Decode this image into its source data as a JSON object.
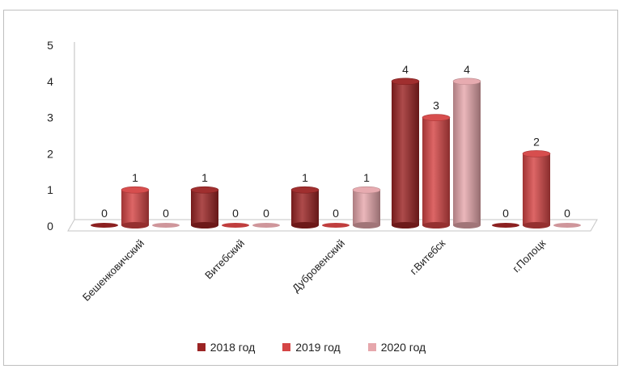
{
  "chart_data": {
    "type": "bar",
    "categories": [
      "Бешенковичский",
      "Витебский",
      "Дубровенский",
      "г.Витебск",
      "г.Полоцк"
    ],
    "series": [
      {
        "name": "2018 год",
        "values": [
          0,
          1,
          1,
          4,
          0
        ],
        "color": "#9b2424"
      },
      {
        "name": "2019 год",
        "values": [
          1,
          0,
          0,
          3,
          2
        ],
        "color": "#d54545"
      },
      {
        "name": "2020 год",
        "values": [
          0,
          0,
          1,
          4,
          0
        ],
        "color": "#e6a7ac"
      }
    ],
    "ylim": [
      0,
      5
    ],
    "yticks": [
      "0",
      "1",
      "2",
      "3",
      "4",
      "5"
    ],
    "legend_position": "bottom",
    "style": "3d-cylinder"
  }
}
